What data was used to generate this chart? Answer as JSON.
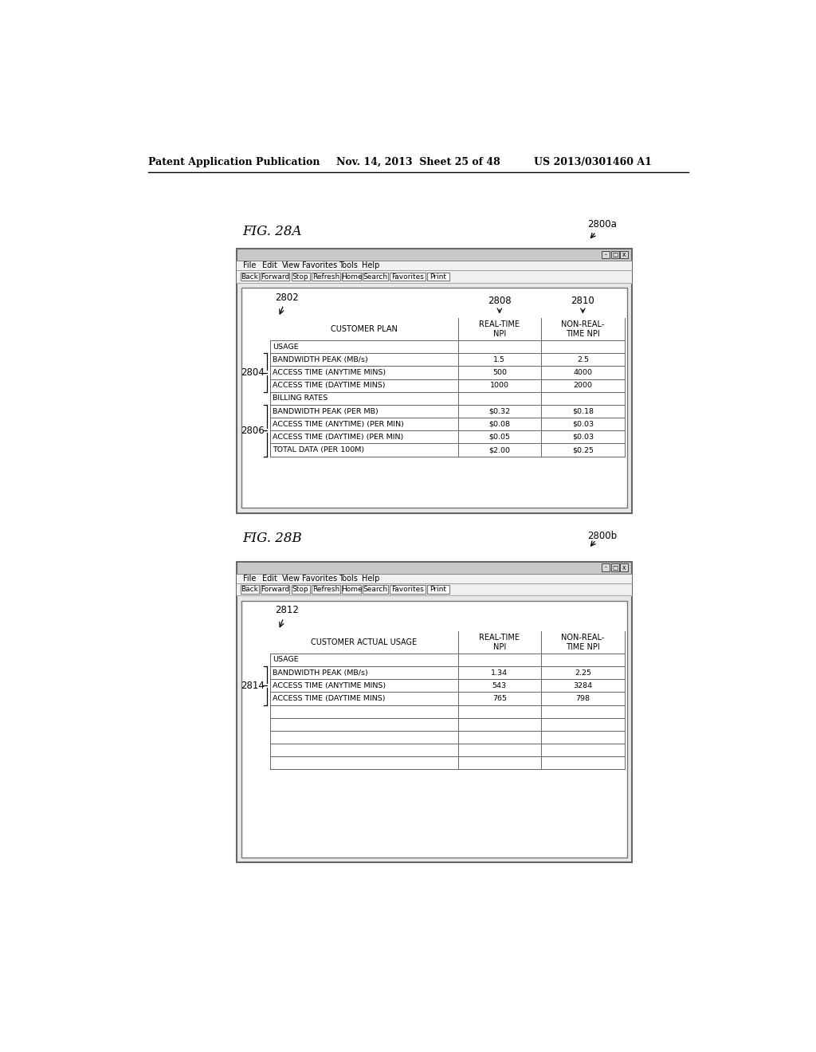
{
  "background_color": "#ffffff",
  "header_text_left": "Patent Application Publication",
  "header_text_mid": "Nov. 14, 2013  Sheet 25 of 48",
  "header_text_right": "US 2013/0301460 A1",
  "fig28a_label": "FIG. 28A",
  "fig28a_ref": "2800a",
  "fig28a_arrow_label": "2802",
  "fig28a_col1_label": "2808",
  "fig28a_col2_label": "2810",
  "fig28a_menu": [
    "File",
    "Edit",
    "View",
    "Favorites",
    "Tools",
    "Help"
  ],
  "fig28a_buttons": [
    "Back",
    "Forward",
    "Stop",
    "Refresh",
    "Home",
    "Search",
    "Favorites",
    "Print"
  ],
  "fig28a_col_headers": [
    "CUSTOMER PLAN",
    "REAL-TIME\nNPI",
    "NON-REAL-\nTIME NPI"
  ],
  "fig28a_rows": [
    [
      "USAGE",
      "",
      ""
    ],
    [
      "BANDWIDTH PEAK (MB/s)",
      "1.5",
      "2.5"
    ],
    [
      "ACCESS TIME (ANYTIME MINS)",
      "500",
      "4000"
    ],
    [
      "ACCESS TIME (DAYTIME MINS)",
      "1000",
      "2000"
    ],
    [
      "BILLING RATES",
      "",
      ""
    ],
    [
      "BANDWIDTH PEAK (PER MB)",
      "$0.32",
      "$0.18"
    ],
    [
      "ACCESS TIME (ANYTIME) (PER MIN)",
      "$0.08",
      "$0.03"
    ],
    [
      "ACCESS TIME (DAYTIME) (PER MIN)",
      "$0.05",
      "$0.03"
    ],
    [
      "TOTAL DATA (PER 100M)",
      "$2.00",
      "$0.25"
    ]
  ],
  "fig28a_brace1_label": "2804",
  "fig28a_brace2_label": "2806",
  "fig28b_label": "FIG. 28B",
  "fig28b_ref": "2800b",
  "fig28b_arrow_label": "2812",
  "fig28b_menu": [
    "File",
    "Edit",
    "View",
    "Favorites",
    "Tools",
    "Help"
  ],
  "fig28b_buttons": [
    "Back",
    "Forward",
    "Stop",
    "Refresh",
    "Home",
    "Search",
    "Favorites",
    "Print"
  ],
  "fig28b_col_headers": [
    "CUSTOMER ACTUAL USAGE",
    "REAL-TIME\nNPI",
    "NON-REAL-\nTIME NPI"
  ],
  "fig28b_rows": [
    [
      "USAGE",
      "",
      ""
    ],
    [
      "BANDWIDTH PEAK (MB/s)",
      "1.34",
      "2.25"
    ],
    [
      "ACCESS TIME (ANYTIME MINS)",
      "543",
      "3284"
    ],
    [
      "ACCESS TIME (DAYTIME MINS)",
      "765",
      "798"
    ],
    [
      "",
      "",
      ""
    ],
    [
      "",
      "",
      ""
    ],
    [
      "",
      "",
      ""
    ],
    [
      "",
      "",
      ""
    ],
    [
      "",
      "",
      ""
    ]
  ],
  "fig28b_brace1_label": "2814"
}
